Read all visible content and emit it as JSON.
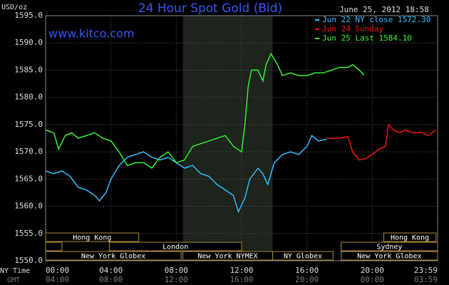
{
  "chart_data": {
    "type": "line",
    "title": "24 Hour Spot Gold (Bid)",
    "subtitle": "www.kitco.com",
    "timestamp": "June 25, 2012 18:58",
    "y_label": "USD/oz",
    "x_row_labels": [
      "NY Time",
      "GMT"
    ],
    "xlim": [
      0,
      24
    ],
    "xticks": [
      {
        "value": 0,
        "label": "00:00"
      },
      {
        "value": 4,
        "label": "04:00"
      },
      {
        "value": 8,
        "label": "08:00"
      },
      {
        "value": 12,
        "label": "12:00"
      },
      {
        "value": 16,
        "label": "16:00"
      },
      {
        "value": 20,
        "label": "20:00"
      },
      {
        "value": 24,
        "label": "23:59"
      }
    ],
    "gmt_labels": [
      "04:00",
      "08:00",
      "12:00",
      "16:00",
      "20:00",
      "00:00",
      "03:59"
    ],
    "ylim": [
      1550,
      1595
    ],
    "yticks": [
      {
        "value": 1550,
        "label": "1550.0"
      },
      {
        "value": 1555,
        "label": "1555.0"
      },
      {
        "value": 1560,
        "label": "1560.0"
      },
      {
        "value": 1565,
        "label": "1565.0"
      },
      {
        "value": 1570,
        "label": "1570.0"
      },
      {
        "value": 1575,
        "label": "1575.0"
      },
      {
        "value": 1580,
        "label": "1580.0"
      },
      {
        "value": 1585,
        "label": "1585.0"
      },
      {
        "value": 1590,
        "label": "1590.0"
      },
      {
        "value": 1595,
        "label": "1595.0"
      }
    ],
    "grid": true,
    "legend": "top-right",
    "shade": [
      8.4,
      13.9
    ],
    "sessions": [
      [
        {
          "label": "Hong Kong",
          "start": 0,
          "end": 5.7
        },
        {
          "label": "Hong Kong",
          "start": 20.7,
          "end": 23.9
        }
      ],
      [
        {
          "label": null,
          "start": 0,
          "end": 1
        },
        {
          "label": "London",
          "start": 3.9,
          "end": 12
        },
        {
          "label": "Sydney",
          "start": 18.1,
          "end": 24
        }
      ],
      [
        {
          "label": "New York Globex",
          "start": 0,
          "end": 8.3
        },
        {
          "label": "New York NYMEX",
          "start": 8.4,
          "end": 13.9
        },
        {
          "label": "NY Globex",
          "start": 13.9,
          "end": 17.6
        },
        {
          "label": "New York Globex",
          "start": 18.1,
          "end": 24
        }
      ]
    ],
    "series": [
      {
        "name": "Jun 22 NY close 1572.30",
        "color": "#33bbff",
        "x": [
          0,
          0.5,
          1,
          1.5,
          2,
          2.5,
          3,
          3.3,
          3.7,
          4,
          4.5,
          5,
          5.5,
          6,
          6.5,
          7,
          7.5,
          8,
          8.5,
          9,
          9.5,
          10,
          10.5,
          11,
          11.5,
          11.8,
          12.2,
          12.5,
          13,
          13.3,
          13.6,
          14,
          14.5,
          15,
          15.5,
          16,
          16.3,
          16.7,
          17.2
        ],
        "values": [
          1566.5,
          1566,
          1566.5,
          1565.5,
          1563.5,
          1563,
          1562,
          1561,
          1562.5,
          1565,
          1567.5,
          1569,
          1569.5,
          1570,
          1569,
          1568.5,
          1569,
          1568,
          1567,
          1567.5,
          1566,
          1565.5,
          1564,
          1563,
          1562,
          1559,
          1561.5,
          1565,
          1567,
          1566,
          1564,
          1568,
          1569.5,
          1570,
          1569.5,
          1571,
          1573,
          1572,
          1572.3
        ]
      },
      {
        "name": "Jun 24 Sunday",
        "color": "#ee1111",
        "x": [
          17.2,
          17.6,
          18,
          18.5,
          18.8,
          19.2,
          19.6,
          20,
          20.4,
          20.8,
          21.0,
          21.3,
          21.7,
          22,
          22.5,
          23,
          23.4,
          23.9
        ],
        "values": [
          1572.5,
          1572.5,
          1572.5,
          1572.8,
          1570,
          1568.5,
          1568.8,
          1569.5,
          1570.5,
          1571,
          1575,
          1574,
          1573.5,
          1574,
          1573.5,
          1573.6,
          1573,
          1574
        ]
      },
      {
        "name": "Jun 25 Last 1584.10",
        "color": "#33ee33",
        "x": [
          0,
          0.5,
          0.8,
          1.2,
          1.6,
          2,
          2.5,
          3,
          3.5,
          4,
          4.5,
          5,
          5.5,
          6,
          6.5,
          7,
          7.5,
          8,
          8.5,
          9,
          9.5,
          10,
          10.5,
          11,
          11.5,
          12,
          12.2,
          12.4,
          12.6,
          13,
          13.3,
          13.5,
          13.8,
          14.2,
          14.5,
          15,
          15.5,
          16,
          16.5,
          17,
          17.5,
          18,
          18.5,
          18.8,
          19.2,
          19.5
        ],
        "values": [
          1574,
          1573.5,
          1570.5,
          1573,
          1573.5,
          1572.5,
          1573,
          1573.5,
          1572.5,
          1572,
          1570,
          1567.5,
          1568,
          1568,
          1567,
          1569,
          1570,
          1568,
          1568.5,
          1571,
          1571.5,
          1572,
          1572.5,
          1573,
          1571,
          1570,
          1575,
          1582,
          1585,
          1585,
          1583,
          1586,
          1588,
          1586,
          1584,
          1584.5,
          1584,
          1584,
          1584.5,
          1584.5,
          1585,
          1585.5,
          1585.5,
          1586,
          1585,
          1584.1
        ]
      }
    ]
  }
}
